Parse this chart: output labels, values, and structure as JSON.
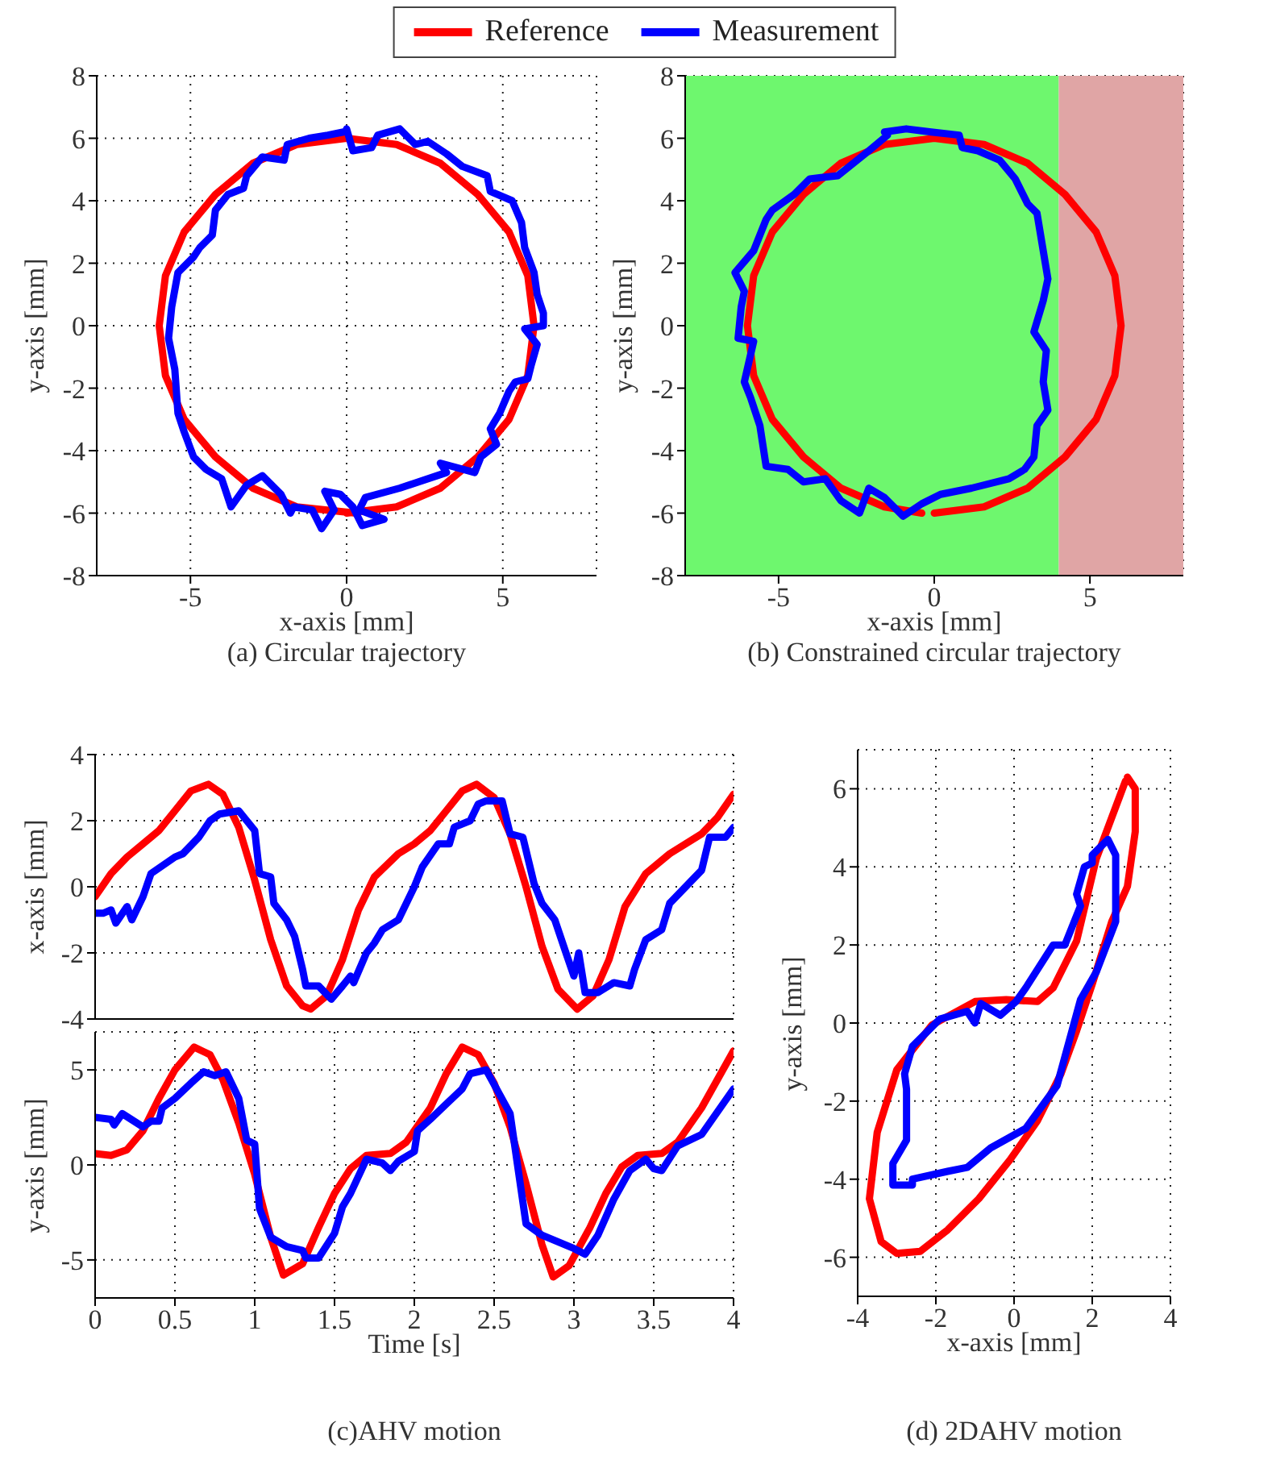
{
  "chart_data": [
    {
      "type": "line",
      "title": "(a) Circular trajectory",
      "xlabel": "x-axis [mm]",
      "ylabel": "y-axis [mm]",
      "xlim": [
        -8,
        8
      ],
      "xticks": [
        -5,
        0,
        5
      ],
      "ylim": [
        -8,
        8
      ],
      "yticks": [
        -8,
        -6,
        -4,
        -2,
        0,
        2,
        4,
        6,
        8
      ],
      "grid": true,
      "legend": "top",
      "series": [
        {
          "name": "Reference",
          "color": "#ff0000",
          "x": [
            0,
            1.6,
            3,
            4.2,
            5.2,
            5.8,
            6,
            5.8,
            5.2,
            4.2,
            3,
            1.6,
            0,
            -1.6,
            -3,
            -4.2,
            -5.2,
            -5.8,
            -6,
            -5.8,
            -5.2,
            -4.2,
            -3,
            -1.6,
            0.3
          ],
          "values": [
            -6,
            -5.8,
            -5.2,
            -4.2,
            -3,
            -1.6,
            0,
            1.6,
            3,
            4.2,
            5.2,
            5.8,
            6,
            5.8,
            5.2,
            4.2,
            3,
            1.6,
            0,
            -1.6,
            -3,
            -4.2,
            -5.2,
            -5.8,
            -6
          ]
        },
        {
          "name": "Measurement",
          "color": "#0000ff",
          "x": [
            0,
            0.2,
            0.8,
            1,
            1.7,
            2.2,
            2.6,
            3.2,
            3.7,
            4.5,
            4.6,
            5.3,
            5.6,
            5.7,
            6,
            6.1,
            6.3,
            6.3,
            5.7,
            6.1,
            5.9,
            5.8,
            5.4,
            5.2,
            4.9,
            4.6,
            4.8,
            4.3,
            4.1,
            3,
            3.2,
            1.7,
            0.6,
            0.4,
            1.2,
            0.5,
            0.2,
            -0.2,
            -0.7,
            -0.4,
            -0.8,
            -1.1,
            -1.7,
            -1.8,
            -2.1,
            -2.7,
            -3.2,
            -3.7,
            -4,
            -4.5,
            -4.9,
            -5.2,
            -5.4,
            -5.5,
            -5.7,
            -5.6,
            -5.4,
            -4.9,
            -4.7,
            -4.3,
            -4.2,
            -3.8,
            -3.3,
            -3.2,
            -2.7,
            -2,
            -1.9,
            -1.2,
            -0.6,
            -0.1
          ],
          "values": [
            6.3,
            5.6,
            5.7,
            6.1,
            6.3,
            5.8,
            5.9,
            5.5,
            5.1,
            4.8,
            4.3,
            4,
            3.3,
            2.5,
            1.7,
            1,
            0.4,
            0,
            -0.1,
            -0.6,
            -1.3,
            -1.7,
            -1.8,
            -2.1,
            -2.8,
            -3.3,
            -3.8,
            -4.2,
            -4.7,
            -4.4,
            -4.7,
            -5.2,
            -5.5,
            -5.9,
            -6.2,
            -6.4,
            -5.8,
            -5.4,
            -5.3,
            -5.9,
            -6.5,
            -5.9,
            -5.8,
            -6,
            -5.4,
            -4.8,
            -5.1,
            -5.8,
            -4.9,
            -4.6,
            -4.2,
            -3.4,
            -2.8,
            -1.4,
            -0.4,
            0.6,
            1.7,
            2.2,
            2.5,
            2.9,
            3.7,
            4.2,
            4.4,
            4.8,
            5.4,
            5.3,
            5.8,
            6,
            6.1,
            6.2
          ]
        }
      ]
    },
    {
      "type": "line",
      "title": "(b) Constrained circular trajectory",
      "xlabel": "x-axis [mm]",
      "ylabel": "y-axis [mm]",
      "xlim": [
        -8,
        8
      ],
      "xticks": [
        -5,
        0,
        5
      ],
      "ylim": [
        -8,
        8
      ],
      "yticks": [
        -8,
        -6,
        -4,
        -2,
        0,
        2,
        4,
        6,
        8
      ],
      "grid": true,
      "bands": [
        {
          "axis": "x",
          "from": -8,
          "to": 4,
          "color": "#6ef76e"
        },
        {
          "axis": "x",
          "from": 4,
          "to": 8,
          "color": "#e0a5a5"
        }
      ],
      "series": [
        {
          "color": "#ff0000",
          "x": [
            0,
            1.6,
            3,
            4.2,
            5.2,
            5.8,
            6,
            5.8,
            5.2,
            4.2,
            3,
            1.6,
            0,
            -1.6,
            -3,
            -4.2,
            -5.2,
            -5.8,
            -6,
            -5.8,
            -5.2,
            -4.2,
            -3,
            -1.6,
            -0.4
          ],
          "values": [
            -6,
            -5.8,
            -5.2,
            -4.2,
            -3,
            -1.6,
            0,
            1.6,
            3,
            4.2,
            5.2,
            5.8,
            6,
            5.8,
            5.2,
            4.2,
            3,
            1.6,
            0,
            -1.6,
            -3,
            -4.2,
            -5.2,
            -5.8,
            -6
          ]
        },
        {
          "color": "#0000ff",
          "x": [
            -1.6,
            -0.9,
            -0.1,
            0.8,
            0.9,
            1.4,
            2.1,
            2.6,
            3,
            3.3,
            3.5,
            3.65,
            3.5,
            3.2,
            3.6,
            3.5,
            3.65,
            3.3,
            3.2,
            2.9,
            2.4,
            1.2,
            0.2,
            -0.4,
            -1,
            -1.6,
            -2.1,
            -2.4,
            -3,
            -3.5,
            -4.2,
            -4.7,
            -5.4,
            -5.6,
            -5.9,
            -6.1,
            -5.8,
            -6.3,
            -6.2,
            -6.1,
            -6.4,
            -5.8,
            -5.4,
            -5.2,
            -4.5,
            -4,
            -3.1,
            -2.6,
            -2.1,
            -1.5
          ],
          "values": [
            6.2,
            6.3,
            6.2,
            6.1,
            5.7,
            5.6,
            5.3,
            4.7,
            3.9,
            3.6,
            2.4,
            1.5,
            0.8,
            -0.2,
            -0.8,
            -1.8,
            -2.7,
            -3.2,
            -4.2,
            -4.6,
            -4.9,
            -5.2,
            -5.4,
            -5.7,
            -6.1,
            -5.5,
            -5.2,
            -6,
            -5.6,
            -4.9,
            -5,
            -4.6,
            -4.5,
            -3.2,
            -2.3,
            -1.8,
            -0.5,
            -0.4,
            0.6,
            1.1,
            1.7,
            2.4,
            3.4,
            3.7,
            4.2,
            4.7,
            4.8,
            5.2,
            5.6,
            6.1
          ]
        }
      ]
    },
    {
      "type": "line",
      "ylabel": "x-axis [mm]",
      "xlim": [
        0,
        4
      ],
      "xticks": [
        0,
        0.5,
        1,
        1.5,
        2,
        2.5,
        3,
        3.5,
        4
      ],
      "ylim": [
        -4,
        4
      ],
      "yticks": [
        -4,
        -2,
        0,
        2,
        4
      ],
      "grid": true,
      "tick_labels": "y",
      "series": [
        {
          "color": "#ff0000",
          "x": [
            0,
            0.1,
            0.2,
            0.3,
            0.4,
            0.5,
            0.6,
            0.71,
            0.8,
            0.9,
            1,
            1.1,
            1.2,
            1.3,
            1.35,
            1.45,
            1.55,
            1.65,
            1.75,
            1.9,
            2,
            2.1,
            2.2,
            2.3,
            2.39,
            2.5,
            2.6,
            2.7,
            2.8,
            2.9,
            3.02,
            3.12,
            3.22,
            3.32,
            3.45,
            3.6,
            3.8,
            3.9,
            4
          ],
          "values": [
            -0.3,
            0.4,
            0.9,
            1.3,
            1.7,
            2.3,
            2.9,
            3.1,
            2.8,
            1.8,
            0.2,
            -1.6,
            -3,
            -3.6,
            -3.7,
            -3.3,
            -2.2,
            -0.7,
            0.3,
            1,
            1.3,
            1.7,
            2.3,
            2.9,
            3.1,
            2.7,
            1.6,
            0,
            -1.8,
            -3.1,
            -3.7,
            -3.3,
            -2.2,
            -0.6,
            0.4,
            1,
            1.6,
            2.1,
            2.8
          ]
        },
        {
          "color": "#0000ff",
          "x": [
            0,
            0.05,
            0.1,
            0.13,
            0.2,
            0.23,
            0.3,
            0.35,
            0.5,
            0.55,
            0.65,
            0.72,
            0.78,
            0.9,
            0.95,
            1,
            1.03,
            1.1,
            1.12,
            1.2,
            1.25,
            1.3,
            1.32,
            1.4,
            1.48,
            1.55,
            1.6,
            1.62,
            1.7,
            1.75,
            1.8,
            1.9,
            1.95,
            2,
            2.05,
            2.15,
            2.22,
            2.25,
            2.35,
            2.4,
            2.45,
            2.55,
            2.6,
            2.68,
            2.75,
            2.8,
            2.88,
            2.95,
            3,
            3.03,
            3.07,
            3.15,
            3.25,
            3.35,
            3.38,
            3.45,
            3.55,
            3.6,
            3.7,
            3.8,
            3.85,
            3.95,
            4
          ],
          "values": [
            -0.8,
            -0.8,
            -0.7,
            -1.1,
            -0.6,
            -1,
            -0.3,
            0.4,
            0.9,
            1,
            1.5,
            2,
            2.2,
            2.3,
            2,
            1.7,
            0.4,
            0.3,
            -0.5,
            -1,
            -1.5,
            -2.5,
            -3,
            -3,
            -3.4,
            -3,
            -2.7,
            -2.9,
            -2,
            -1.7,
            -1.3,
            -1,
            -0.5,
            0,
            0.6,
            1.3,
            1.3,
            1.8,
            2,
            2.5,
            2.6,
            2.6,
            1.6,
            1.5,
            0.1,
            -0.5,
            -1,
            -2,
            -2.7,
            -2,
            -3.2,
            -3.2,
            -2.9,
            -3,
            -2.5,
            -1.6,
            -1.3,
            -0.5,
            0,
            0.5,
            1.5,
            1.5,
            1.8
          ]
        }
      ]
    },
    {
      "type": "line",
      "title": "(c)AHV motion",
      "xlabel": "Time [s]",
      "ylabel": "y-axis [mm]",
      "xlim": [
        0,
        4
      ],
      "xticks": [
        0,
        0.5,
        1,
        1.5,
        2,
        2.5,
        3,
        3.5,
        4
      ],
      "ylim": [
        -7,
        7
      ],
      "yticks": [
        -5,
        0,
        5
      ],
      "grid": true,
      "series": [
        {
          "color": "#ff0000",
          "x": [
            0,
            0.1,
            0.2,
            0.3,
            0.4,
            0.5,
            0.62,
            0.72,
            0.8,
            0.9,
            1,
            1.1,
            1.18,
            1.3,
            1.4,
            1.5,
            1.6,
            1.7,
            1.85,
            1.95,
            2.1,
            2.2,
            2.3,
            2.4,
            2.5,
            2.6,
            2.7,
            2.8,
            2.87,
            2.97,
            3.1,
            3.2,
            3.3,
            3.4,
            3.55,
            3.65,
            3.8,
            4
          ],
          "values": [
            0.6,
            0.5,
            0.8,
            1.8,
            3.5,
            5,
            6.2,
            5.8,
            4.5,
            2.2,
            -0.5,
            -3.8,
            -5.8,
            -5.2,
            -3.3,
            -1.5,
            -0.2,
            0.5,
            0.6,
            1.2,
            3,
            4.8,
            6.2,
            5.8,
            4.3,
            2,
            -1,
            -4.2,
            -5.9,
            -5.3,
            -3.3,
            -1.5,
            -0.1,
            0.5,
            0.6,
            1.2,
            3,
            6
          ]
        },
        {
          "color": "#0000ff",
          "x": [
            0,
            0.1,
            0.12,
            0.17,
            0.3,
            0.35,
            0.4,
            0.42,
            0.5,
            0.6,
            0.68,
            0.75,
            0.82,
            0.9,
            0.95,
            1,
            1.03,
            1.1,
            1.2,
            1.3,
            1.32,
            1.4,
            1.5,
            1.55,
            1.6,
            1.7,
            1.8,
            1.85,
            1.9,
            2,
            2.02,
            2.1,
            2.2,
            2.3,
            2.35,
            2.45,
            2.6,
            2.7,
            2.8,
            3,
            3.07,
            3.15,
            3.25,
            3.35,
            3.45,
            3.5,
            3.55,
            3.65,
            3.8,
            4
          ],
          "values": [
            2.5,
            2.4,
            2.1,
            2.7,
            2,
            2.3,
            2.3,
            3,
            3.5,
            4.3,
            4.9,
            4.7,
            4.9,
            3.5,
            1.3,
            1.1,
            -2.3,
            -3.8,
            -4.3,
            -4.5,
            -4.9,
            -4.9,
            -3.6,
            -2.2,
            -1.5,
            0.3,
            0.1,
            -0.3,
            0.2,
            0.7,
            1.8,
            2.4,
            3.2,
            4,
            4.8,
            5,
            2.7,
            -3.1,
            -3.7,
            -4.4,
            -4.7,
            -3.7,
            -1.8,
            -0.3,
            0.3,
            -0.2,
            -0.3,
            1,
            1.6,
            4
          ]
        }
      ]
    },
    {
      "type": "line",
      "title": "(d) 2DAHV motion",
      "xlabel": "x-axis [mm]",
      "ylabel": "y-axis [mm]",
      "xlim": [
        -4,
        4
      ],
      "xticks": [
        -4,
        -2,
        0,
        2,
        4
      ],
      "ylim": [
        -7,
        7
      ],
      "yticks": [
        -6,
        -4,
        -2,
        0,
        2,
        4,
        6
      ],
      "grid": true,
      "series": [
        {
          "color": "#ff0000",
          "x": [
            2.9,
            3.1,
            3.1,
            2.9,
            2.5,
            2,
            1.6,
            1.2,
            0.6,
            -0.1,
            -0.9,
            -1.7,
            -2.4,
            -3,
            -3.4,
            -3.7,
            -3.5,
            -3,
            -2.1,
            -1,
            -0.2,
            0.6,
            1,
            1.6,
            2.1,
            2.7,
            2.85
          ],
          "values": [
            6.3,
            6,
            4.9,
            3.5,
            2.6,
            1,
            -0.2,
            -1.3,
            -2.5,
            -3.5,
            -4.5,
            -5.3,
            -5.85,
            -5.9,
            -5.6,
            -4.5,
            -2.8,
            -1.2,
            -0.05,
            0.55,
            0.6,
            0.55,
            0.9,
            2.1,
            4.2,
            5.8,
            6.2
          ]
        },
        {
          "color": "#0000ff",
          "x": [
            2.4,
            2.6,
            2.6,
            2.1,
            1.7,
            1.1,
            0.3,
            -0.6,
            -1.2,
            -1.7,
            -2.6,
            -2.6,
            -3.1,
            -3.1,
            -2.75,
            -2.75,
            -2.8,
            -2.6,
            -1.9,
            -1.2,
            -1,
            -0.85,
            -0.35,
            0.05,
            0.3,
            1,
            1.3,
            1.7,
            1.6,
            1.8,
            2,
            2,
            2.35
          ],
          "values": [
            4.7,
            4.3,
            2.6,
            1.3,
            0.6,
            -1.6,
            -2.7,
            -3.2,
            -3.7,
            -3.8,
            -4,
            -4.15,
            -4.15,
            -3.6,
            -3,
            -1.7,
            -1.3,
            -0.6,
            0.1,
            0.3,
            0,
            0.5,
            0.2,
            0.55,
            0.9,
            2,
            2,
            3,
            3.3,
            4,
            4.1,
            4.3,
            4.65
          ]
        }
      ]
    }
  ]
}
